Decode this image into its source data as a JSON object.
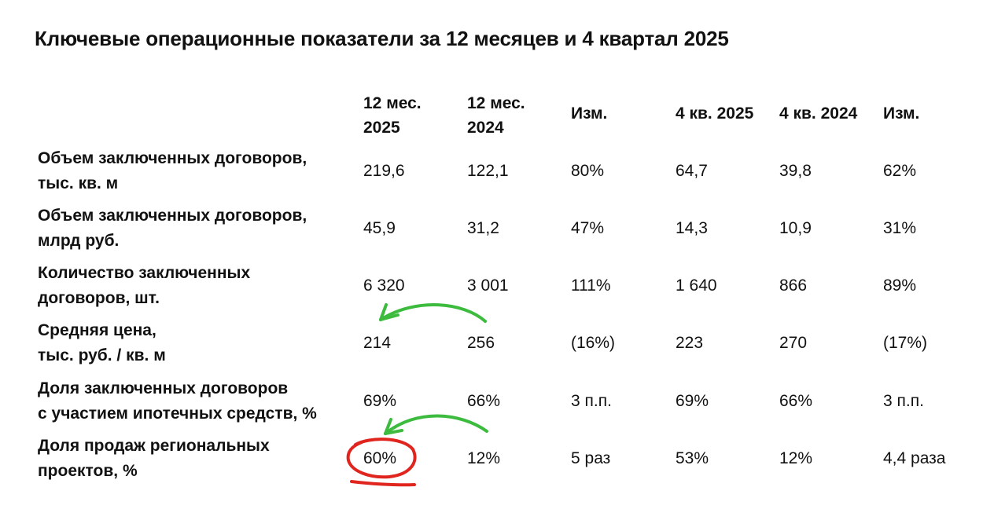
{
  "title": "Ключевые операционные показатели за 12 месяцев и 4 квартал 2025",
  "columns": [
    {
      "line1": "12 мес.",
      "line2": "2025"
    },
    {
      "line1": "12 мес.",
      "line2": "2024"
    },
    {
      "line1": "Изм.",
      "line2": ""
    },
    {
      "line1": "4 кв. 2025",
      "line2": ""
    },
    {
      "line1": "4 кв. 2024",
      "line2": ""
    },
    {
      "line1": "Изм.",
      "line2": ""
    }
  ],
  "rows": [
    {
      "label1": "Объем заключенных договоров,",
      "label2": "тыс. кв. м",
      "values": [
        "219,6",
        "122,1",
        "80%",
        "64,7",
        "39,8",
        "62%"
      ]
    },
    {
      "label1": "Объем заключенных договоров,",
      "label2": "млрд руб.",
      "values": [
        "45,9",
        "31,2",
        "47%",
        "14,3",
        "10,9",
        "31%"
      ]
    },
    {
      "label1": "Количество заключенных",
      "label2": "договоров, шт.",
      "values": [
        "6 320",
        "3 001",
        "111%",
        "1 640",
        "866",
        "89%"
      ]
    },
    {
      "label1": "Средняя цена,",
      "label2": "тыс. руб. / кв. м",
      "values": [
        "214",
        "256",
        "(16%)",
        "223",
        "270",
        "(17%)"
      ]
    },
    {
      "label1": "Доля заключенных договоров",
      "label2": "с участием ипотечных средств, %",
      "values": [
        "69%",
        "66%",
        "3 п.п.",
        "69%",
        "66%",
        "3 п.п."
      ]
    },
    {
      "label1": "Доля продаж региональных",
      "label2": "проектов, %",
      "values": [
        "60%",
        "12%",
        "5 раз",
        "53%",
        "12%",
        "4,4 раза"
      ]
    }
  ],
  "annotation_colors": {
    "arrow": "#3dbb3f",
    "circle": "#e0251f"
  }
}
